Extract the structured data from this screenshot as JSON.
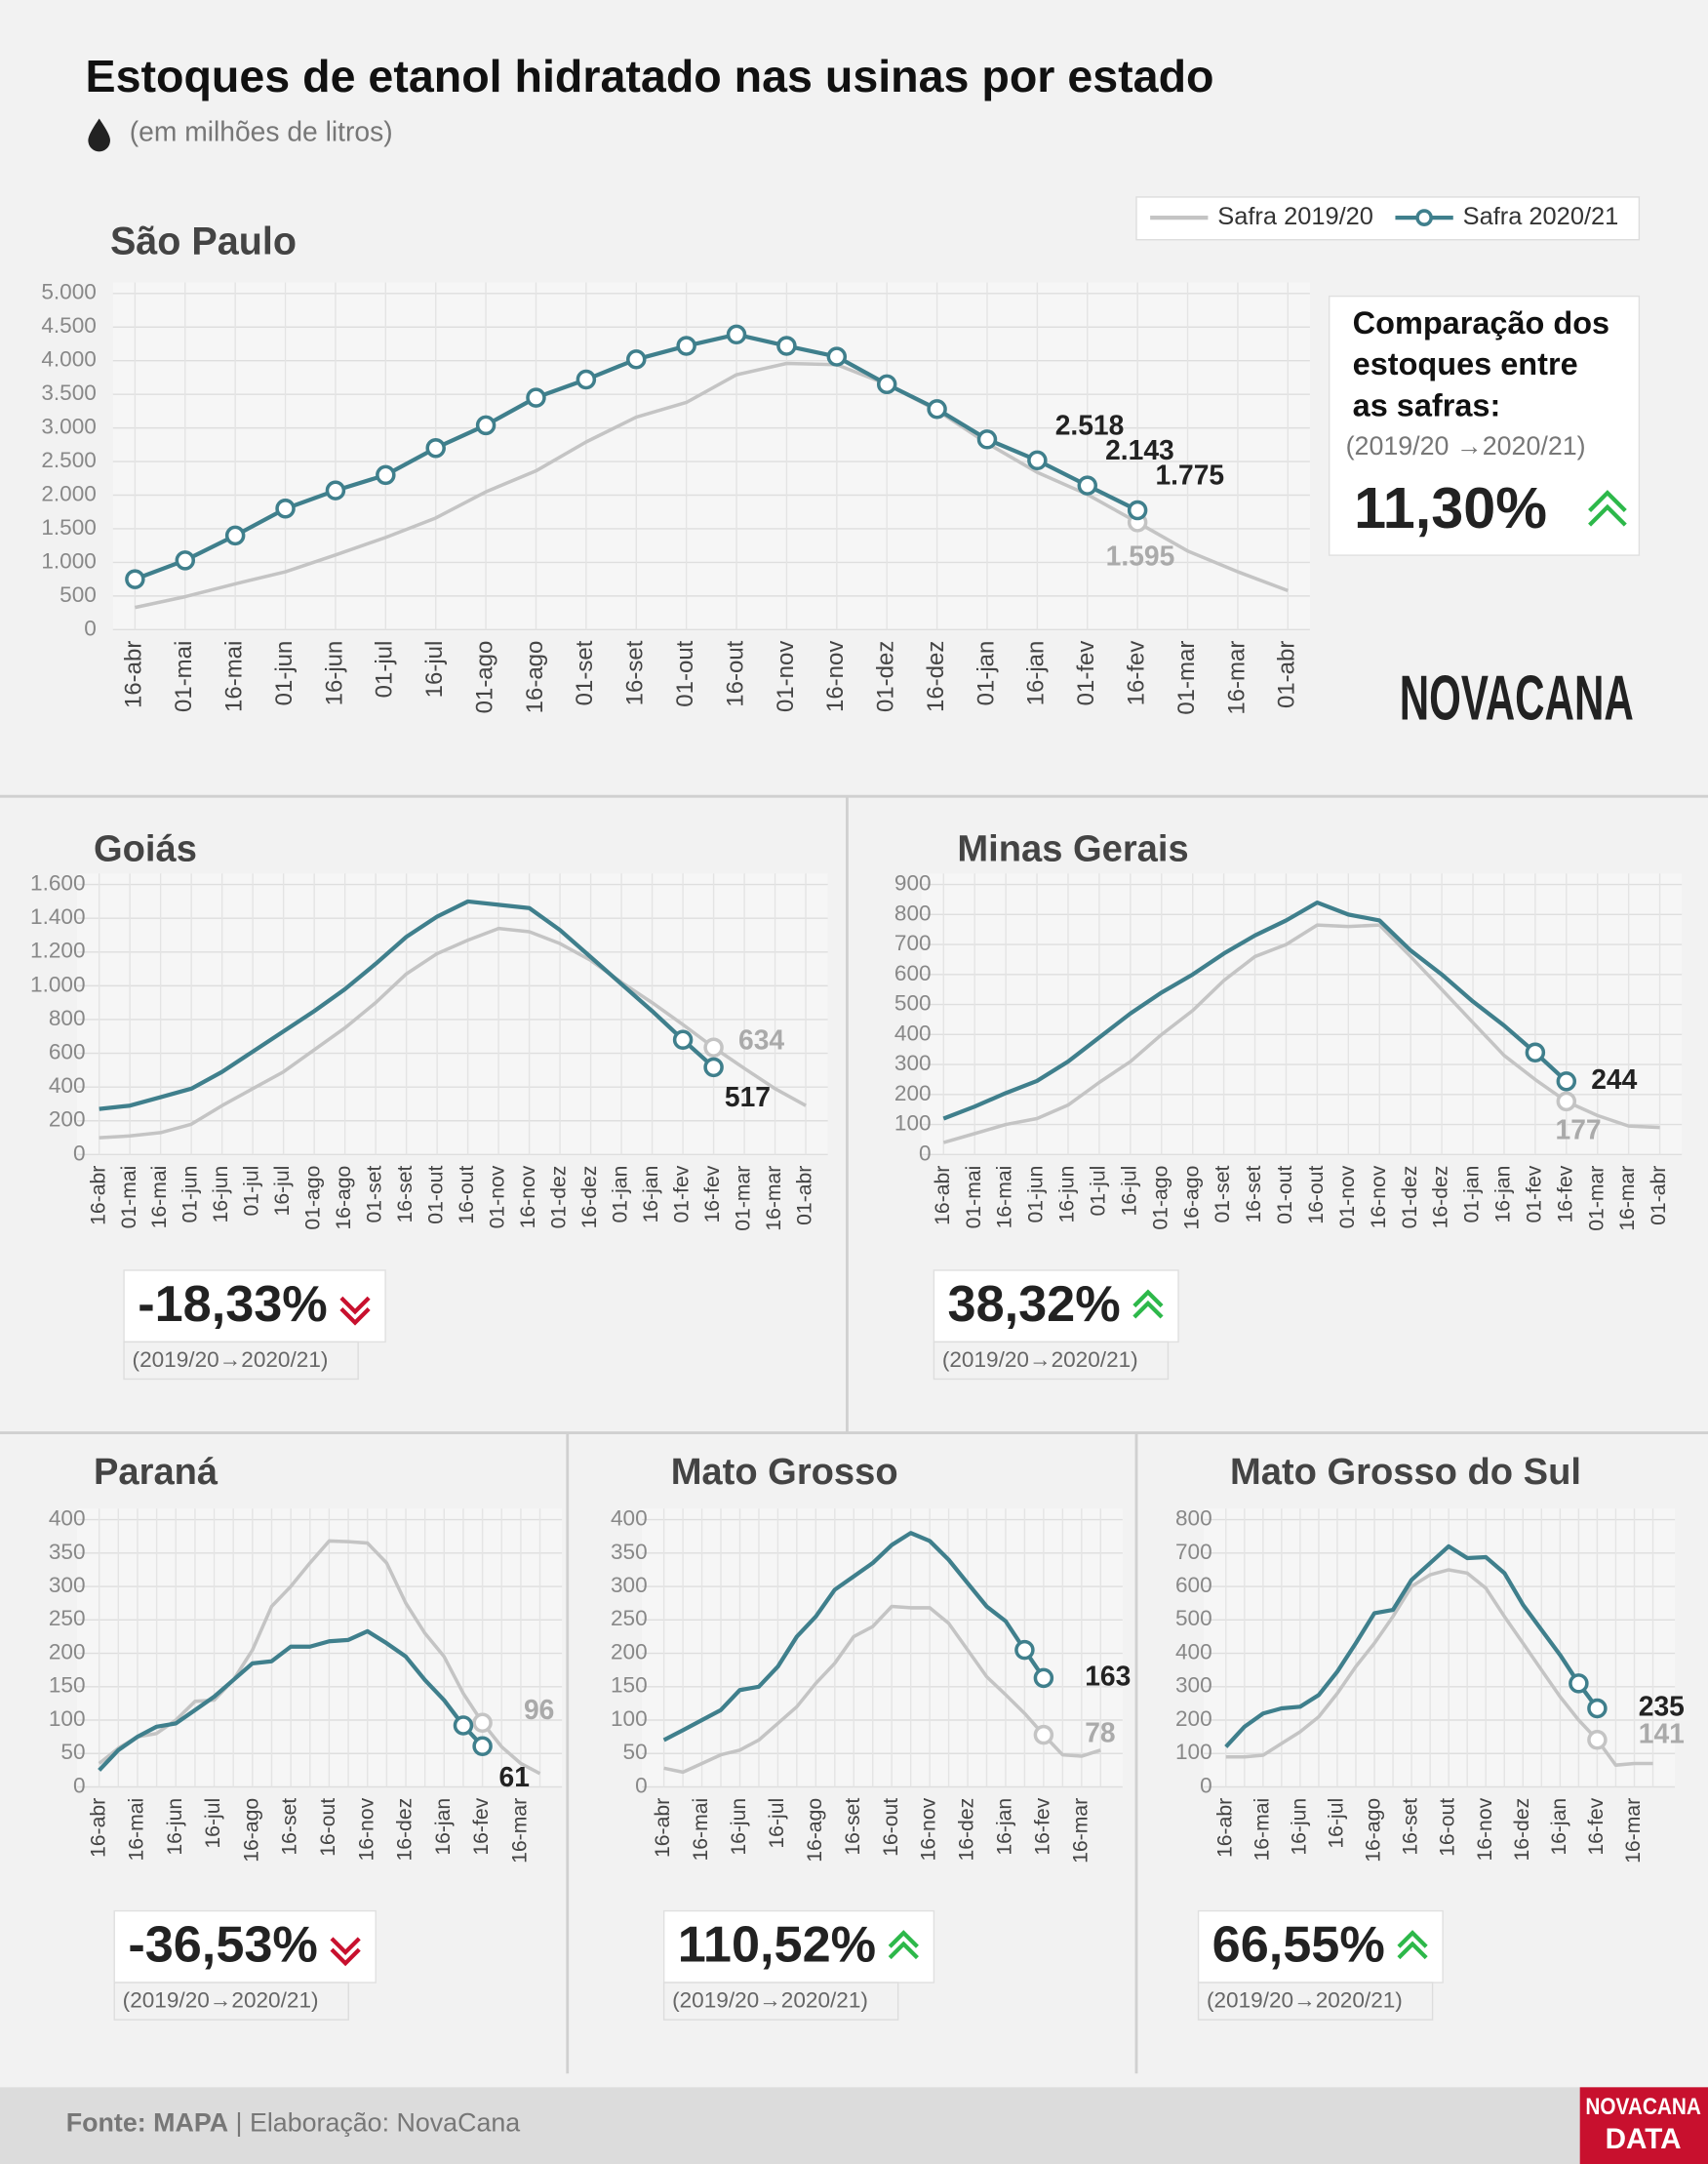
{
  "header": {
    "title": "Estoques de etanol hidratado nas usinas por estado",
    "subtitle": "(em milhões de litros)"
  },
  "logo": "NOVACANA",
  "footer": {
    "source": "Fonte: MAPA",
    "credit": " | Elaboração: NovaCana",
    "brand": [
      "NOVACANA",
      "DATA"
    ]
  },
  "chart_data": [
    {
      "type": "line",
      "title": "São Paulo",
      "categories": [
        "16-abr",
        "01-mai",
        "16-mai",
        "01-jun",
        "16-jun",
        "01-jul",
        "16-jul",
        "01-ago",
        "16-ago",
        "01-set",
        "16-set",
        "01-out",
        "16-out",
        "01-nov",
        "16-nov",
        "01-dez",
        "16-dez",
        "01-jan",
        "16-jan",
        "01-fev",
        "16-fev",
        "01-mar",
        "16-mar",
        "01-abr"
      ],
      "series": [
        {
          "name": "Safra 2019/20",
          "color": "#c4c4c4",
          "values": [
            330,
            490,
            680,
            860,
            1110,
            1370,
            1660,
            2050,
            2360,
            2790,
            3160,
            3380,
            3790,
            3960,
            3940,
            3650,
            3260,
            2770,
            2340,
            2010,
            1595,
            1170,
            860,
            580
          ],
          "value_labels": [
            null,
            null,
            null,
            null,
            null,
            null,
            null,
            null,
            null,
            null,
            null,
            null,
            null,
            null,
            null,
            null,
            null,
            null,
            null,
            null,
            "1.595",
            null,
            null,
            null
          ]
        },
        {
          "name": "Safra 2020/21",
          "color": "#3f7f8c",
          "values": [
            750,
            1030,
            1400,
            1800,
            2070,
            2300,
            2700,
            3040,
            3450,
            3720,
            4020,
            4220,
            4390,
            4220,
            4060,
            3650,
            3280,
            2830,
            2518,
            2143,
            1775,
            null,
            null,
            null
          ],
          "value_labels": [
            null,
            null,
            null,
            null,
            null,
            null,
            null,
            null,
            null,
            null,
            null,
            null,
            null,
            null,
            null,
            null,
            null,
            null,
            "2.518",
            "2.143",
            "1.775",
            null,
            null,
            null
          ]
        }
      ],
      "ylim": [
        0,
        5000
      ],
      "yticks": [
        0,
        500,
        {
          "value": 1000,
          "label": "1.000"
        },
        {
          "value": 1500,
          "label": "1.500"
        },
        {
          "value": 2000,
          "label": "2.000"
        },
        {
          "value": 2500,
          "label": "2.500"
        },
        {
          "value": 3000,
          "label": "3.000"
        },
        {
          "value": 3500,
          "label": "3.500"
        },
        {
          "value": 4000,
          "label": "4.000"
        },
        {
          "value": 4500,
          "label": "4.500"
        },
        {
          "value": 5000,
          "label": "5.000"
        }
      ],
      "grid": true,
      "comparison": {
        "heading": [
          "Comparação dos",
          "estoques entre",
          "as safras:"
        ],
        "period": "(2019/20 →2020/21)",
        "value": "11,30%",
        "trend": "up"
      }
    },
    {
      "type": "line",
      "title": "Goiás",
      "categories": [
        "16-abr",
        "01-mai",
        "16-mai",
        "01-jun",
        "16-jun",
        "01-jul",
        "16-jul",
        "01-ago",
        "16-ago",
        "01-set",
        "16-set",
        "01-out",
        "16-out",
        "01-nov",
        "16-nov",
        "01-dez",
        "16-dez",
        "01-jan",
        "16-jan",
        "01-fev",
        "16-fev",
        "01-mar",
        "16-mar",
        "01-abr"
      ],
      "series": [
        {
          "color": "#c4c4c4",
          "values": [
            100,
            110,
            130,
            180,
            290,
            390,
            490,
            620,
            750,
            900,
            1070,
            1190,
            1270,
            1340,
            1320,
            1250,
            1150,
            1020,
            900,
            770,
            634,
            510,
            390,
            290
          ]
        },
        {
          "color": "#3f7f8c",
          "values": [
            270,
            290,
            340,
            390,
            490,
            610,
            730,
            850,
            980,
            1130,
            1290,
            1410,
            1500,
            1480,
            1460,
            1330,
            1170,
            1010,
            850,
            680,
            517,
            null,
            null,
            null
          ]
        }
      ],
      "ylim": [
        0,
        1600
      ],
      "yticks": [
        0,
        200,
        400,
        600,
        800,
        {
          "value": 1000,
          "label": "1.000"
        },
        {
          "value": 1200,
          "label": "1.200"
        },
        {
          "value": 1400,
          "label": "1.400"
        },
        {
          "value": 1600,
          "label": "1.600"
        }
      ],
      "grid": true,
      "comparison": {
        "period": "(2019/20→2020/21)",
        "value": "-18,33%",
        "trend": "down"
      }
    },
    {
      "type": "line",
      "title": "Minas Gerais",
      "categories": [
        "16-abr",
        "01-mai",
        "16-mai",
        "01-jun",
        "16-jun",
        "01-jul",
        "16-jul",
        "01-ago",
        "16-ago",
        "01-set",
        "16-set",
        "01-out",
        "16-out",
        "01-nov",
        "16-nov",
        "01-dez",
        "16-dez",
        "01-jan",
        "16-jan",
        "01-fev",
        "16-fev",
        "01-mar",
        "16-mar",
        "01-abr"
      ],
      "series": [
        {
          "color": "#c4c4c4",
          "values": [
            40,
            70,
            100,
            120,
            165,
            240,
            310,
            400,
            480,
            580,
            660,
            700,
            765,
            760,
            765,
            660,
            550,
            440,
            330,
            250,
            177,
            130,
            95,
            90
          ]
        },
        {
          "color": "#3f7f8c",
          "values": [
            120,
            160,
            205,
            245,
            310,
            390,
            470,
            540,
            600,
            670,
            730,
            780,
            840,
            800,
            780,
            680,
            600,
            510,
            430,
            340,
            244,
            null,
            null,
            null
          ]
        }
      ],
      "ylim": [
        0,
        900
      ],
      "yticks": [
        0,
        100,
        200,
        300,
        400,
        500,
        600,
        700,
        800,
        900
      ],
      "grid": true,
      "comparison": {
        "period": "(2019/20→2020/21)",
        "value": "38,32%",
        "trend": "up"
      }
    },
    {
      "type": "line",
      "title": "Paraná",
      "categories": [
        "16-abr",
        null,
        "16-mai",
        null,
        "16-jun",
        null,
        "16-jul",
        null,
        "16-ago",
        null,
        "16-set",
        null,
        "16-out",
        null,
        "16-nov",
        null,
        "16-dez",
        null,
        "16-jan",
        null,
        "16-fev",
        null,
        "16-mar",
        null
      ],
      "series": [
        {
          "color": "#c4c4c4",
          "values": [
            35,
            58,
            75,
            80,
            100,
            128,
            130,
            160,
            205,
            270,
            300,
            335,
            368,
            367,
            365,
            335,
            275,
            230,
            195,
            140,
            96,
            60,
            35,
            20
          ]
        },
        {
          "color": "#3f7f8c",
          "values": [
            25,
            55,
            75,
            90,
            95,
            115,
            135,
            160,
            185,
            188,
            210,
            210,
            218,
            220,
            233,
            215,
            195,
            160,
            130,
            92,
            61,
            null,
            null,
            null
          ]
        }
      ],
      "ylim": [
        0,
        400
      ],
      "yticks": [
        0,
        50,
        100,
        150,
        200,
        250,
        300,
        350,
        400
      ],
      "grid": true,
      "comparison": {
        "period": "(2019/20→2020/21)",
        "value": "-36,53%",
        "trend": "down"
      }
    },
    {
      "type": "line",
      "title": "Mato Grosso",
      "categories": [
        "16-abr",
        null,
        "16-mai",
        null,
        "16-jun",
        null,
        "16-jul",
        null,
        "16-ago",
        null,
        "16-set",
        null,
        "16-out",
        null,
        "16-nov",
        null,
        "16-dez",
        null,
        "16-jan",
        null,
        "16-fev",
        null,
        "16-mar",
        null
      ],
      "series": [
        {
          "color": "#c4c4c4",
          "values": [
            28,
            22,
            35,
            48,
            55,
            70,
            95,
            120,
            155,
            185,
            225,
            240,
            270,
            268,
            268,
            245,
            205,
            165,
            138,
            110,
            78,
            48,
            46,
            55
          ]
        },
        {
          "color": "#3f7f8c",
          "values": [
            70,
            85,
            100,
            115,
            145,
            150,
            180,
            225,
            255,
            295,
            315,
            335,
            362,
            380,
            368,
            340,
            305,
            270,
            248,
            205,
            163,
            null,
            null,
            null
          ]
        }
      ],
      "ylim": [
        0,
        400
      ],
      "yticks": [
        0,
        50,
        100,
        150,
        200,
        250,
        300,
        350,
        400
      ],
      "grid": true,
      "comparison": {
        "period": "(2019/20→2020/21)",
        "value": "110,52%",
        "trend": "up"
      }
    },
    {
      "type": "line",
      "title": "Mato Grosso do Sul",
      "categories": [
        "16-abr",
        null,
        "16-mai",
        null,
        "16-jun",
        null,
        "16-jul",
        null,
        "16-ago",
        null,
        "16-set",
        null,
        "16-out",
        null,
        "16-nov",
        null,
        "16-dez",
        null,
        "16-jan",
        null,
        "16-fev",
        null,
        "16-mar",
        null
      ],
      "series": [
        {
          "color": "#c4c4c4",
          "values": [
            90,
            90,
            95,
            130,
            165,
            210,
            280,
            360,
            430,
            510,
            600,
            635,
            650,
            640,
            595,
            510,
            430,
            350,
            270,
            200,
            141,
            65,
            70,
            70
          ]
        },
        {
          "color": "#3f7f8c",
          "values": [
            120,
            180,
            220,
            235,
            240,
            275,
            345,
            430,
            520,
            530,
            620,
            670,
            720,
            685,
            688,
            640,
            545,
            470,
            395,
            310,
            235,
            null,
            null,
            null
          ]
        }
      ],
      "ylim": [
        0,
        800
      ],
      "yticks": [
        0,
        100,
        200,
        300,
        400,
        500,
        600,
        700,
        800
      ],
      "grid": true,
      "comparison": {
        "period": "(2019/20→2020/21)",
        "value": "66,55%",
        "trend": "up"
      }
    }
  ]
}
